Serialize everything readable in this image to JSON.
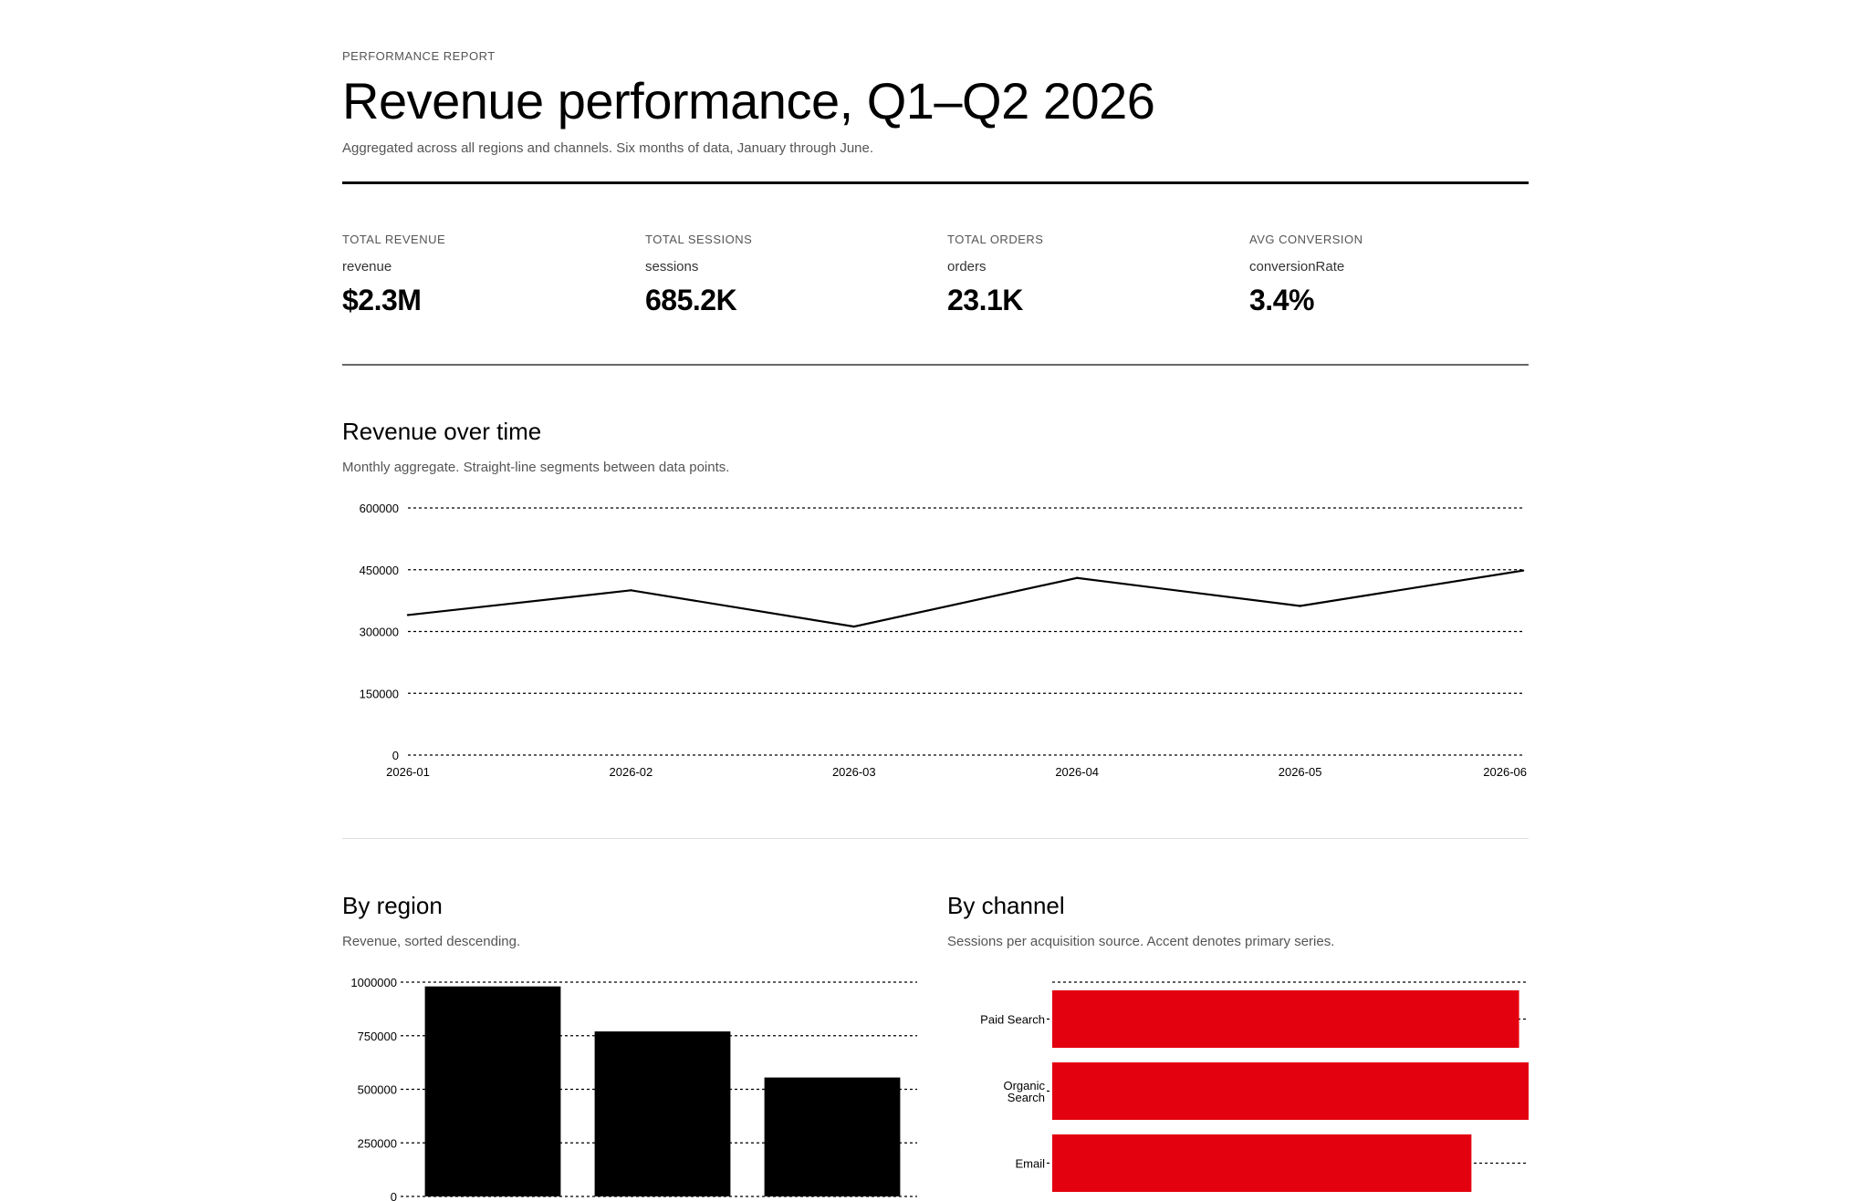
{
  "header": {
    "eyebrow": "PERFORMANCE REPORT",
    "title": "Revenue performance, Q1–Q2 2026",
    "subtitle": "Aggregated across all regions and channels. Six months of data, January through June."
  },
  "kpis": [
    {
      "label": "TOTAL REVENUE",
      "key": "revenue",
      "value": "$2.3M"
    },
    {
      "label": "TOTAL SESSIONS",
      "key": "sessions",
      "value": "685.2K"
    },
    {
      "label": "TOTAL ORDERS",
      "key": "orders",
      "value": "23.1K"
    },
    {
      "label": "AVG CONVERSION",
      "key": "conversionRate",
      "value": "3.4%"
    }
  ],
  "sections": {
    "revenue_over_time": {
      "title": "Revenue over time",
      "subtitle": "Monthly aggregate. Straight-line segments between data points."
    },
    "by_region": {
      "title": "By region",
      "subtitle": "Revenue, sorted descending."
    },
    "by_channel": {
      "title": "By channel",
      "subtitle": "Sessions per acquisition source. Accent denotes primary series."
    }
  },
  "colors": {
    "line": "#000000",
    "region_bar": "#000000",
    "channel_bar": "#e3000f",
    "grid": "#000000"
  },
  "chart_data": [
    {
      "type": "line",
      "x": [
        "2026-01",
        "2026-02",
        "2026-03",
        "2026-04",
        "2026-05",
        "2026-06"
      ],
      "series": [
        {
          "values": [
            340000,
            400000,
            312000,
            430000,
            362000,
            448000
          ]
        }
      ],
      "yticks": [
        0,
        150000,
        300000,
        450000,
        600000
      ],
      "ylim": [
        0,
        600000
      ],
      "grid": true
    },
    {
      "type": "bar",
      "orientation": "vertical",
      "categories": [
        "",
        "",
        ""
      ],
      "values": [
        980000,
        770000,
        555000
      ],
      "yticks": [
        0,
        250000,
        500000,
        750000,
        1000000
      ],
      "ylim": [
        0,
        1000000
      ],
      "grid": true
    },
    {
      "type": "bar",
      "orientation": "horizontal",
      "categories": [
        [
          "Paid Search"
        ],
        [
          "Organic",
          "Search"
        ],
        [
          "Email"
        ]
      ],
      "values": [
        0.98,
        1.0,
        0.88
      ],
      "grid": true
    }
  ]
}
